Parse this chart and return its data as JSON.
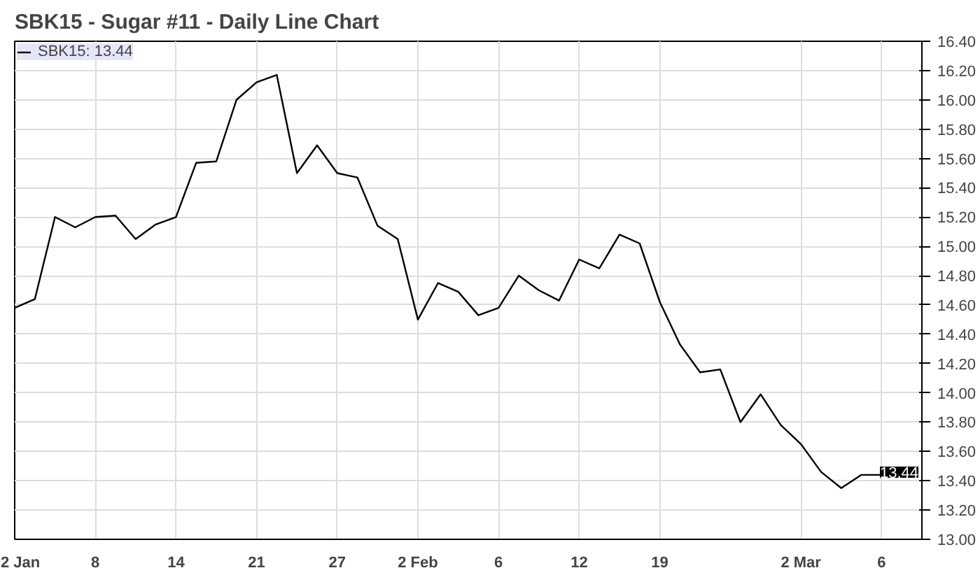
{
  "chart_data": {
    "type": "line",
    "title": "SBK15 - Sugar #11 - Daily Line Chart",
    "categories": [
      "2 Jan",
      null,
      null,
      null,
      "8",
      null,
      null,
      null,
      "14",
      null,
      null,
      null,
      "21",
      null,
      null,
      null,
      "27",
      null,
      null,
      null,
      "2 Feb",
      null,
      null,
      null,
      "6",
      null,
      null,
      null,
      "12",
      null,
      null,
      null,
      "19",
      null,
      null,
      null,
      null,
      null,
      null,
      "2 Mar",
      null,
      null,
      null,
      "6"
    ],
    "series": [
      {
        "name": "SBK15: 13.44",
        "color": "#000000",
        "values": [
          14.58,
          14.64,
          15.2,
          15.13,
          15.2,
          15.21,
          15.05,
          15.15,
          15.2,
          15.57,
          15.58,
          16.0,
          16.12,
          16.17,
          15.5,
          15.69,
          15.5,
          15.47,
          15.14,
          15.05,
          14.5,
          14.75,
          14.69,
          14.53,
          14.58,
          14.8,
          14.7,
          14.63,
          14.91,
          14.85,
          15.08,
          15.02,
          14.62,
          14.33,
          14.14,
          14.16,
          13.8,
          13.99,
          13.78,
          13.65,
          13.46,
          13.35,
          13.44,
          13.44
        ]
      }
    ],
    "ylim": [
      13.0,
      16.4
    ],
    "yticks": [
      {
        "value": 13.0,
        "label": "13.00"
      },
      {
        "value": 13.2,
        "label": "13.20"
      },
      {
        "value": 13.4,
        "label": "13.40"
      },
      {
        "value": 13.6,
        "label": "13.60"
      },
      {
        "value": 13.8,
        "label": "13.80"
      },
      {
        "value": 14.0,
        "label": "14.00"
      },
      {
        "value": 14.2,
        "label": "14.20"
      },
      {
        "value": 14.4,
        "label": "14.40"
      },
      {
        "value": 14.6,
        "label": "14.60"
      },
      {
        "value": 14.8,
        "label": "14.80"
      },
      {
        "value": 15.0,
        "label": "15.00"
      },
      {
        "value": 15.2,
        "label": "15.20"
      },
      {
        "value": 15.4,
        "label": "15.40"
      },
      {
        "value": 15.6,
        "label": "15.60"
      },
      {
        "value": 15.8,
        "label": "15.80"
      },
      {
        "value": 16.0,
        "label": "16.00"
      },
      {
        "value": 16.2,
        "label": "16.20"
      },
      {
        "value": 16.4,
        "label": "16.40"
      }
    ],
    "annotations": [
      "13.44"
    ],
    "grid": true,
    "legend": "top left",
    "marker": "none",
    "line_style": "solid"
  }
}
